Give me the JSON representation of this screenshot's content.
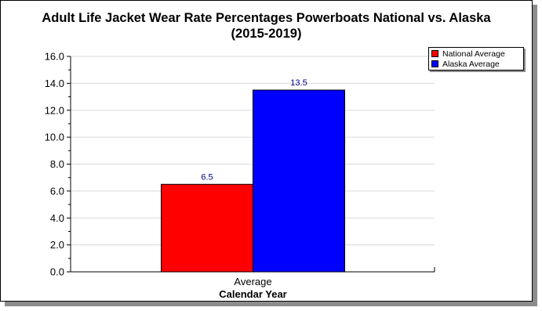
{
  "chart_data": {
    "type": "bar",
    "title_line1": "Adult Life Jacket Wear Rate Percentages Powerboats National vs. Alaska",
    "title_line2": "(2015-2019)",
    "categories": [
      "Average"
    ],
    "xlabel": "Calendar Year",
    "ylabel": "",
    "ylim": [
      0,
      16
    ],
    "yticks": [
      "0.0",
      "2.0",
      "4.0",
      "6.0",
      "8.0",
      "10.0",
      "12.0",
      "14.0",
      "16.0"
    ],
    "grid": true,
    "legend_position": "top-right",
    "series": [
      {
        "name": "National Average",
        "values": [
          6.5
        ],
        "value_labels": [
          "6.5"
        ],
        "color": "#ff0000"
      },
      {
        "name": "Alaska Average",
        "values": [
          13.5
        ],
        "value_labels": [
          "13.5"
        ],
        "color": "#0000ff"
      }
    ]
  }
}
